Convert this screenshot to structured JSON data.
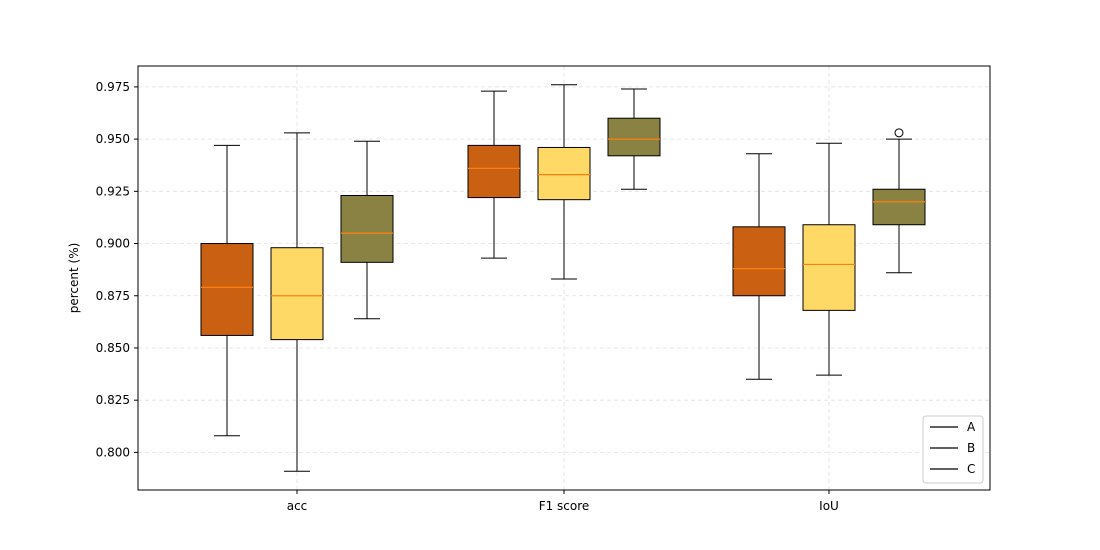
{
  "chart_data": {
    "type": "box",
    "title": "",
    "xlabel": "",
    "ylabel": "percent (%)",
    "ylim": [
      0.782,
      0.985
    ],
    "yticks": [
      "0.800",
      "0.825",
      "0.850",
      "0.875",
      "0.900",
      "0.925",
      "0.950",
      "0.975"
    ],
    "grid": true,
    "legend_placement": "lower-right",
    "categories": [
      "acc",
      "F1 score",
      "IoU"
    ],
    "series": [
      {
        "name": "A",
        "color": "#c96012",
        "boxes": [
          {
            "whislo": 0.808,
            "q1": 0.856,
            "median": 0.879,
            "q3": 0.9,
            "whishi": 0.947,
            "fliers": []
          },
          {
            "whislo": 0.893,
            "q1": 0.922,
            "median": 0.936,
            "q3": 0.947,
            "whishi": 0.973,
            "fliers": []
          },
          {
            "whislo": 0.835,
            "q1": 0.875,
            "median": 0.888,
            "q3": 0.908,
            "whishi": 0.943,
            "fliers": []
          }
        ]
      },
      {
        "name": "B",
        "color": "#ffd966",
        "boxes": [
          {
            "whislo": 0.791,
            "q1": 0.854,
            "median": 0.875,
            "q3": 0.898,
            "whishi": 0.953,
            "fliers": []
          },
          {
            "whislo": 0.883,
            "q1": 0.921,
            "median": 0.933,
            "q3": 0.946,
            "whishi": 0.976,
            "fliers": []
          },
          {
            "whislo": 0.837,
            "q1": 0.868,
            "median": 0.89,
            "q3": 0.909,
            "whishi": 0.948,
            "fliers": []
          }
        ]
      },
      {
        "name": "C",
        "color": "#8a8243",
        "boxes": [
          {
            "whislo": 0.864,
            "q1": 0.891,
            "median": 0.905,
            "q3": 0.923,
            "whishi": 0.949,
            "fliers": []
          },
          {
            "whislo": 0.926,
            "q1": 0.942,
            "median": 0.95,
            "q3": 0.96,
            "whishi": 0.974,
            "fliers": []
          },
          {
            "whislo": 0.886,
            "q1": 0.909,
            "median": 0.92,
            "q3": 0.926,
            "whishi": 0.95,
            "fliers": [
              0.953
            ]
          }
        ]
      }
    ],
    "median_color": "#ff7f0e",
    "legend": [
      "A",
      "B",
      "C"
    ]
  }
}
